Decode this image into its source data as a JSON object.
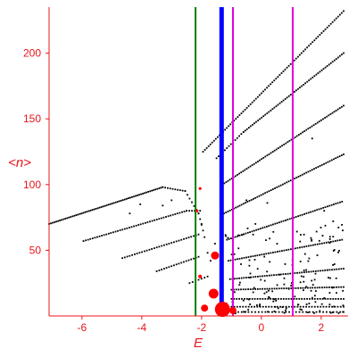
{
  "chart_data": {
    "type": "scatter",
    "title": "",
    "xlabel": "E",
    "ylabel": "<n>",
    "xlim": [
      -7.1,
      2.9
    ],
    "ylim": [
      0,
      235
    ],
    "x_ticks": [
      -6,
      -4,
      -2,
      0,
      2
    ],
    "y_ticks": [
      50,
      100,
      150,
      200
    ],
    "grid": false,
    "legend": "none",
    "colors": {
      "axes": "#e8141b",
      "points": "#000000",
      "markers": "#ff0000",
      "green_line": "#008000",
      "blue_line": "#0000ff",
      "magenta_line": "#e000e0"
    },
    "vertical_lines": [
      {
        "name": "green-line",
        "x": -2.2,
        "color": "#008000",
        "width": 2
      },
      {
        "name": "blue-line",
        "x": -1.33,
        "color": "#0000ff",
        "width": 5
      },
      {
        "name": "magenta-line-left",
        "x": -0.95,
        "color": "#e000e0",
        "width": 2
      },
      {
        "name": "magenta-line-right",
        "x": 1.05,
        "color": "#e000e0",
        "width": 2
      }
    ],
    "series": [
      {
        "type": "segment",
        "x0": -7.1,
        "y0": 70,
        "x1": -3.3,
        "y1": 98,
        "n": 64
      },
      {
        "type": "segment",
        "x0": -3.3,
        "y0": 98,
        "x1": -2.55,
        "y1": 95,
        "n": 10
      },
      {
        "type": "segment",
        "x0": -2.55,
        "y0": 95,
        "x1": -2.1,
        "y1": 78,
        "n": 7
      },
      {
        "type": "segment",
        "x0": -2.1,
        "y0": 78,
        "x1": -1.95,
        "y1": 65,
        "n": 4
      },
      {
        "type": "segment",
        "x0": -5.95,
        "y0": 57,
        "x1": -2.5,
        "y1": 80,
        "n": 46
      },
      {
        "type": "segment",
        "x0": -2.5,
        "y0": 80,
        "x1": -2.05,
        "y1": 80,
        "n": 6
      },
      {
        "type": "segment",
        "x0": -4.65,
        "y0": 44,
        "x1": -2.1,
        "y1": 62,
        "n": 32
      },
      {
        "type": "segment",
        "x0": -3.5,
        "y0": 34,
        "x1": -2.1,
        "y1": 45,
        "n": 18
      },
      {
        "type": "segment",
        "x0": -2.4,
        "y0": 25,
        "x1": -1.8,
        "y1": 30,
        "n": 7
      },
      {
        "type": "segment",
        "x0": -1.95,
        "y0": 125,
        "x1": 2.75,
        "y1": 232,
        "n": 78
      },
      {
        "type": "segment",
        "x0": -1.5,
        "y0": 120,
        "x1": -0.6,
        "y1": 140,
        "n": 14
      },
      {
        "type": "segment",
        "x0": -0.6,
        "y0": 140,
        "x1": 2.75,
        "y1": 200,
        "n": 56
      },
      {
        "type": "segment",
        "x0": -1.3,
        "y0": 100,
        "x1": 2.75,
        "y1": 160,
        "n": 66
      },
      {
        "type": "segment",
        "x0": -1.25,
        "y0": 78,
        "x1": 2.75,
        "y1": 123,
        "n": 62
      },
      {
        "type": "segment",
        "x0": -1.15,
        "y0": 58,
        "x1": 2.7,
        "y1": 87,
        "n": 56
      },
      {
        "type": "segment",
        "x0": -1.1,
        "y0": 42,
        "x1": 2.7,
        "y1": 58,
        "n": 52
      },
      {
        "type": "segment",
        "x0": -1.05,
        "y0": 28,
        "x1": 2.75,
        "y1": 36,
        "n": 50
      },
      {
        "type": "segment",
        "x0": -1.0,
        "y0": 20,
        "x1": 2.75,
        "y1": 22,
        "n": 48
      },
      {
        "type": "segment",
        "x0": -1.0,
        "y0": 13,
        "x1": 2.75,
        "y1": 13,
        "n": 44
      },
      {
        "type": "segment",
        "x0": -1.0,
        "y0": 7,
        "x1": 2.75,
        "y1": 7,
        "n": 40
      },
      {
        "type": "segment",
        "x0": -1.0,
        "y0": 3,
        "x1": 2.75,
        "y1": 3,
        "n": 34
      },
      {
        "type": "cluster",
        "x0": -1.2,
        "x1": 2.75,
        "y0": 2,
        "y1": 70,
        "n": 150,
        "seed": 7
      },
      {
        "type": "points",
        "pts": [
          [
            -4.05,
            85
          ],
          [
            -4.4,
            78
          ],
          [
            -3.3,
            84
          ],
          [
            -3.0,
            88
          ],
          [
            -2.0,
            70
          ],
          [
            -1.9,
            60
          ],
          [
            -1.8,
            48
          ],
          [
            -1.7,
            42
          ],
          [
            -1.55,
            55
          ],
          [
            0.2,
            86
          ],
          [
            1.7,
            135
          ],
          [
            -0.5,
            88
          ],
          [
            -0.2,
            70
          ],
          [
            0.4,
            64
          ],
          [
            2.1,
            80
          ],
          [
            2.4,
            72
          ]
        ]
      }
    ],
    "red_markers": [
      {
        "x": -2.05,
        "y": 97,
        "size": 1.6
      },
      {
        "x": -2.15,
        "y": 80,
        "size": 1.6
      },
      {
        "x": -2.05,
        "y": 30,
        "size": 2
      },
      {
        "x": -1.55,
        "y": 46,
        "size": 4.5
      },
      {
        "x": -1.6,
        "y": 17,
        "size": 5.5
      },
      {
        "x": -1.9,
        "y": 6,
        "size": 4
      },
      {
        "x": -1.3,
        "y": 5,
        "size": 8.5
      },
      {
        "x": -0.95,
        "y": 4,
        "size": 4
      }
    ]
  }
}
